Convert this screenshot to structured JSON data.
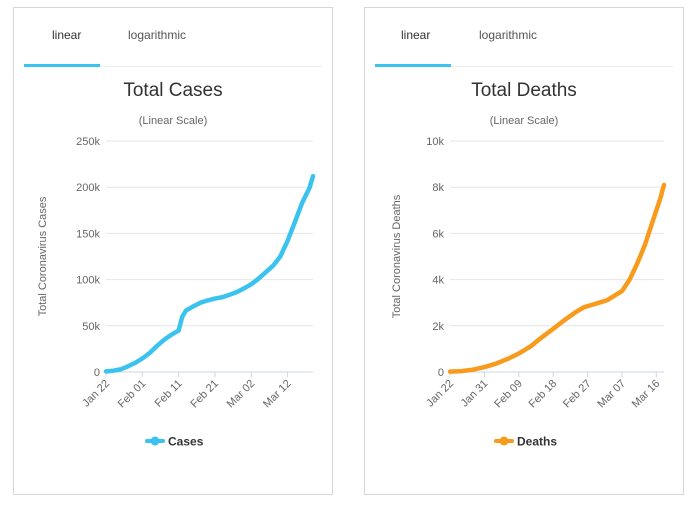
{
  "panels": [
    {
      "tabs": [
        {
          "label": "linear"
        },
        {
          "label": "logarithmic"
        }
      ],
      "accent_color": "#39c3ee"
    },
    {
      "tabs": [
        {
          "label": "linear"
        },
        {
          "label": "logarithmic"
        }
      ],
      "accent_color": "#39c3ee"
    }
  ],
  "chart_data": [
    {
      "type": "line",
      "title": "Total Cases",
      "subtitle": "(Linear Scale)",
      "ylabel": "Total Coronavirus Cases",
      "xlabel": "",
      "ylim": [
        0,
        250000
      ],
      "yticks": [
        0,
        50000,
        100000,
        150000,
        200000,
        250000
      ],
      "ytick_labels": [
        "0",
        "50k",
        "100k",
        "150k",
        "200k",
        "250k"
      ],
      "xlim": [
        0,
        57
      ],
      "xticks": [
        0,
        10,
        20,
        30,
        40,
        50
      ],
      "xtick_labels": [
        "Jan 22",
        "Feb 01",
        "Feb 11",
        "Feb 21",
        "Mar 02",
        "Mar 12"
      ],
      "series": [
        {
          "name": "Cases",
          "color": "#39c3ee",
          "x": [
            0,
            2,
            4,
            6,
            8,
            10,
            12,
            14,
            16,
            18,
            20,
            21,
            22,
            24,
            26,
            28,
            30,
            32,
            34,
            36,
            38,
            40,
            42,
            44,
            46,
            48,
            50,
            52,
            54,
            56,
            57
          ],
          "values": [
            600,
            1400,
            2800,
            6100,
            9800,
            14600,
            20600,
            28000,
            34800,
            40400,
            44800,
            60000,
            66500,
            71000,
            75000,
            77500,
            79400,
            81000,
            83500,
            86500,
            90500,
            95000,
            101000,
            108000,
            115000,
            125000,
            142000,
            162000,
            183000,
            199000,
            212000
          ]
        }
      ],
      "legend": "bottom-center",
      "grid": true
    },
    {
      "type": "line",
      "title": "Total Deaths",
      "subtitle": "(Linear Scale)",
      "ylabel": "Total Coronavirus Deaths",
      "xlabel": "",
      "ylim": [
        0,
        10000
      ],
      "yticks": [
        0,
        2000,
        4000,
        6000,
        8000,
        10000
      ],
      "ytick_labels": [
        "0",
        "2k",
        "4k",
        "6k",
        "8k",
        "10k"
      ],
      "xlim": [
        0,
        56
      ],
      "xticks": [
        0,
        9,
        18,
        27,
        36,
        45,
        54
      ],
      "xtick_labels": [
        "Jan 22",
        "Jan 31",
        "Feb 09",
        "Feb 18",
        "Feb 27",
        "Mar 07",
        "Mar 16"
      ],
      "series": [
        {
          "name": "Deaths",
          "color": "#f89a1c",
          "x": [
            0,
            3,
            6,
            9,
            12,
            15,
            18,
            21,
            24,
            27,
            30,
            33,
            35,
            37,
            39,
            41,
            43,
            45,
            47,
            49,
            51,
            53,
            55,
            56
          ],
          "values": [
            17,
            40,
            100,
            210,
            360,
            560,
            800,
            1100,
            1500,
            1870,
            2250,
            2600,
            2800,
            2900,
            3000,
            3100,
            3300,
            3500,
            4000,
            4700,
            5500,
            6500,
            7500,
            8100
          ]
        }
      ],
      "legend": "bottom-center",
      "grid": true
    }
  ]
}
